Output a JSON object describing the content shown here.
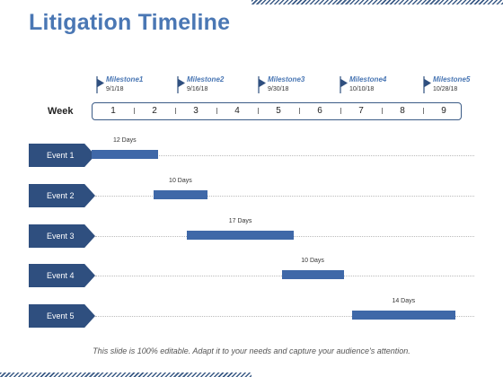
{
  "title": "Litigation Timeline",
  "week_label": "Week",
  "weeks": [
    "1",
    "2",
    "3",
    "4",
    "5",
    "6",
    "7",
    "8",
    "9"
  ],
  "milestones": [
    {
      "name": "Milestone1",
      "date": "9/1/18"
    },
    {
      "name": "Milestone2",
      "date": "9/16/18"
    },
    {
      "name": "Milestone3",
      "date": "9/30/18"
    },
    {
      "name": "Milestone4",
      "date": "10/10/18"
    },
    {
      "name": "Milestone5",
      "date": "10/28/18"
    }
  ],
  "events": [
    {
      "label": "Event 1",
      "duration": "12 Days",
      "start_week": 1.0,
      "end_week": 2.6
    },
    {
      "label": "Event 2",
      "duration": "10 Days",
      "start_week": 2.5,
      "end_week": 3.8
    },
    {
      "label": "Event 3",
      "duration": "17 Days",
      "start_week": 3.3,
      "end_week": 5.9
    },
    {
      "label": "Event 4",
      "duration": "10 Days",
      "start_week": 5.6,
      "end_week": 7.1
    },
    {
      "label": "Event 5",
      "duration": "14 Days",
      "start_week": 7.3,
      "end_week": 9.8
    }
  ],
  "footnote": "This slide is 100% editable. Adapt it to your needs and capture your audience's attention.",
  "colors": {
    "accent": "#4a77b4",
    "dark": "#2f4f7f",
    "bar": "#3f68a8"
  }
}
